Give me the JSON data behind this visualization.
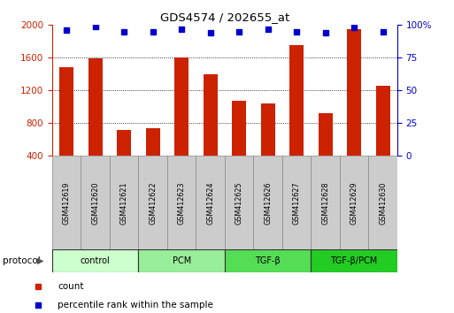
{
  "title": "GDS4574 / 202655_at",
  "samples": [
    "GSM412619",
    "GSM412620",
    "GSM412621",
    "GSM412622",
    "GSM412623",
    "GSM412624",
    "GSM412625",
    "GSM412626",
    "GSM412627",
    "GSM412628",
    "GSM412629",
    "GSM412630"
  ],
  "counts": [
    1480,
    1590,
    720,
    740,
    1600,
    1400,
    1070,
    1040,
    1750,
    920,
    1950,
    1255
  ],
  "percentile_ranks": [
    96,
    99,
    95,
    95,
    97,
    94,
    95,
    97,
    95,
    94,
    98,
    95
  ],
  "ylim_left": [
    400,
    2000
  ],
  "ylim_right": [
    0,
    100
  ],
  "yticks_left": [
    400,
    800,
    1200,
    1600,
    2000
  ],
  "yticks_right": [
    0,
    25,
    50,
    75,
    100
  ],
  "bar_color": "#cc2200",
  "dot_color": "#0000cc",
  "groups": [
    {
      "label": "control",
      "start": 0,
      "end": 3,
      "color": "#ccffcc"
    },
    {
      "label": "PCM",
      "start": 3,
      "end": 6,
      "color": "#99ee99"
    },
    {
      "label": "TGF-β",
      "start": 6,
      "end": 9,
      "color": "#55dd55"
    },
    {
      "label": "TGF-β/PCM",
      "start": 9,
      "end": 12,
      "color": "#22cc22"
    }
  ],
  "bar_width": 0.5,
  "legend_red_label": "count",
  "legend_blue_label": "percentile rank within the sample",
  "protocol_label": "protocol",
  "background_color": "#ffffff",
  "tick_color_left": "#cc2200",
  "tick_color_right": "#0000cc",
  "label_box_color": "#cccccc",
  "label_box_edge": "#888888",
  "grid_color": "#000000",
  "grid_linestyle": "dotted",
  "grid_linewidth": 0.6
}
